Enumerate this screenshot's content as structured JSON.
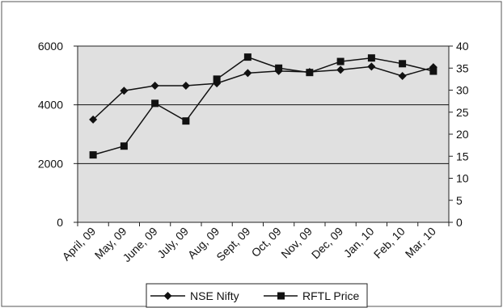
{
  "chart_data": {
    "type": "line",
    "categories": [
      "April, 09",
      "May, 09",
      "June, 09",
      "July, 09",
      "Aug, 09",
      "Sept, 09",
      "Oct, 09",
      "Nov, 09",
      "Dec, 09",
      "Jan, 10",
      "Feb, 10",
      "Mar, 10"
    ],
    "series": [
      {
        "name": "NSE Nifty",
        "axis": "left",
        "marker": "diamond",
        "values": [
          3500,
          4480,
          4650,
          4650,
          4730,
          5080,
          5150,
          5120,
          5190,
          5300,
          4980,
          5280
        ]
      },
      {
        "name": "RFTL Price",
        "axis": "right",
        "marker": "square",
        "values": [
          15.3,
          17.3,
          27.0,
          23.0,
          32.5,
          37.5,
          35.0,
          34.0,
          36.5,
          37.3,
          36.0,
          34.3
        ]
      }
    ],
    "y_left": {
      "min": 0,
      "max": 6000,
      "ticks": [
        0,
        2000,
        4000,
        6000
      ]
    },
    "y_right": {
      "min": 0,
      "max": 40,
      "ticks": [
        0,
        5,
        10,
        15,
        20,
        25,
        30,
        35,
        40
      ]
    },
    "gridlines": [
      2000,
      4000
    ],
    "legend": "bottom",
    "colors": {
      "plot_bg": "#e0e0e0",
      "line": "#111111",
      "border": "#222222"
    }
  }
}
